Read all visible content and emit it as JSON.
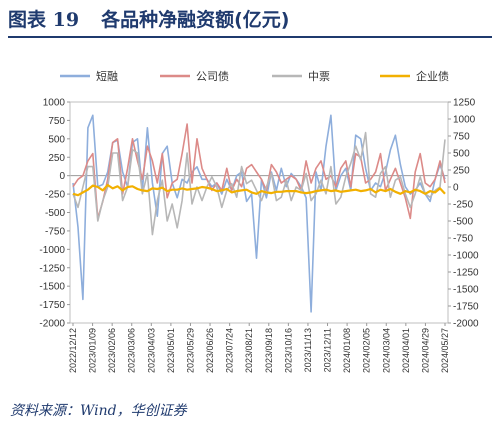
{
  "figure": {
    "label": "图表 19",
    "title": "各品种净融资额(亿元)",
    "source": "资料来源：Wind，华创证券"
  },
  "chart_data": {
    "type": "line",
    "title": "各品种净融资额(亿元)",
    "x_tick_labels": [
      "2022/12/12",
      "2023/01/09",
      "2023/02/06",
      "2023/03/06",
      "2023/04/03",
      "2023/05/01",
      "2023/05/29",
      "2023/06/26",
      "2023/07/24",
      "2023/08/21",
      "2023/09/18",
      "2023/10/16",
      "2023/11/13",
      "2023/12/11",
      "2024/01/08",
      "2024/02/05",
      "2024/03/04",
      "2024/04/01",
      "2024/04/29",
      "2024/05/27"
    ],
    "y_left": {
      "min": -2000,
      "max": 1000,
      "step": 250
    },
    "y_right": {
      "min": -2000,
      "max": 1250,
      "step": 250
    },
    "legend_position": "top",
    "series": [
      {
        "name": "短融",
        "axis": "left",
        "color": "#8eaedc",
        "values": [
          -100,
          -700,
          -1680,
          650,
          820,
          -150,
          -120,
          50,
          450,
          480,
          50,
          -150,
          450,
          500,
          -200,
          650,
          -100,
          -550,
          300,
          400,
          -100,
          -300,
          -50,
          -100,
          50,
          120,
          -50,
          -50,
          -150,
          -100,
          -250,
          -50,
          -200,
          0,
          50,
          -350,
          -250,
          -1120,
          -50,
          -300,
          50,
          -200,
          100,
          -150,
          30,
          -50,
          -150,
          -300,
          -1850,
          50,
          -200,
          400,
          820,
          -200,
          0,
          100,
          -200,
          550,
          500,
          100,
          -200,
          -100,
          -150,
          50,
          350,
          550,
          150,
          -150,
          -250,
          -200,
          -100,
          -250,
          -350,
          -50,
          150,
          -50
        ]
      },
      {
        "name": "公司债",
        "axis": "left",
        "color": "#dc8a88",
        "values": [
          -150,
          -50,
          0,
          200,
          300,
          -580,
          -350,
          -50,
          450,
          500,
          -250,
          100,
          500,
          200,
          -50,
          400,
          200,
          -100,
          300,
          -300,
          -100,
          -50,
          300,
          700,
          -100,
          500,
          100,
          -50,
          -200,
          -100,
          -200,
          100,
          -200,
          -50,
          -150,
          100,
          150,
          50,
          -50,
          -200,
          150,
          50,
          -100,
          -50,
          0,
          -50,
          -200,
          200,
          -100,
          100,
          200,
          -50,
          0,
          -150,
          100,
          200,
          -150,
          300,
          250,
          -100,
          -50,
          50,
          300,
          -200,
          -50,
          100,
          -100,
          -300,
          -580,
          50,
          300,
          -100,
          -150,
          -50,
          200,
          -100
        ]
      },
      {
        "name": "中票",
        "axis": "right",
        "color": "#b7b7b7",
        "values": [
          -100,
          -300,
          0,
          300,
          300,
          -500,
          -200,
          0,
          500,
          500,
          -200,
          0,
          550,
          500,
          -100,
          200,
          -700,
          -200,
          100,
          -500,
          -250,
          -600,
          -200,
          500,
          -250,
          0,
          -200,
          0,
          150,
          0,
          -300,
          -50,
          50,
          -150,
          300,
          50,
          100,
          -50,
          -200,
          0,
          200,
          -200,
          -150,
          100,
          -200,
          0,
          -50,
          200,
          -200,
          -100,
          100,
          -100,
          300,
          -250,
          -150,
          150,
          350,
          600,
          400,
          800,
          -100,
          -150,
          200,
          300,
          -150,
          100,
          150,
          -100,
          -300,
          -100,
          150,
          -100,
          -150,
          -50,
          0,
          700
        ]
      },
      {
        "name": "企业债",
        "axis": "right",
        "color": "#f2b000",
        "values": [
          -100,
          -120,
          -80,
          -40,
          20,
          0,
          -50,
          30,
          -20,
          10,
          -50,
          0,
          10,
          -30,
          -50,
          -60,
          -20,
          -30,
          -10,
          -60,
          -40,
          -40,
          -20,
          -40,
          -30,
          -20,
          0,
          -10,
          -30,
          -60,
          -50,
          -30,
          -80,
          -60,
          -50,
          -40,
          -80,
          -100,
          -60,
          -80,
          -90,
          -70,
          -70,
          -60,
          -60,
          -60,
          -80,
          -90,
          -80,
          -60,
          -50,
          -40,
          -60,
          -50,
          -70,
          -60,
          -50,
          -40,
          -60,
          -50,
          -30,
          -80,
          -40,
          -60,
          -30,
          -70,
          -100,
          -60,
          -80,
          -40,
          -60,
          -100,
          -60,
          -80,
          -20,
          -100
        ]
      }
    ]
  }
}
